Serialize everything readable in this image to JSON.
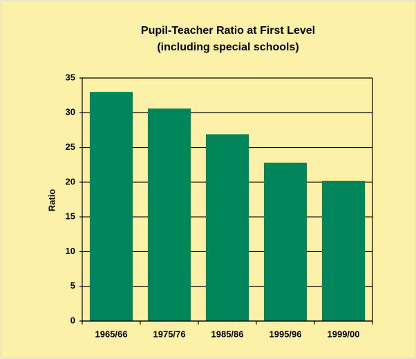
{
  "chart_data": {
    "type": "bar",
    "title": "Pupil-Teacher Ratio at First Level",
    "subtitle": "(including special schools)",
    "y_label": "Ratio",
    "categories": [
      "1965/66",
      "1975/76",
      "1985/86",
      "1995/96",
      "1999/00"
    ],
    "values": [
      33,
      30.6,
      26.9,
      22.8,
      20.2
    ],
    "color": "#00865a",
    "ylim": [
      0,
      35
    ],
    "yticks": [
      0,
      5,
      10,
      15,
      20,
      25,
      30,
      35
    ],
    "grid": true
  }
}
